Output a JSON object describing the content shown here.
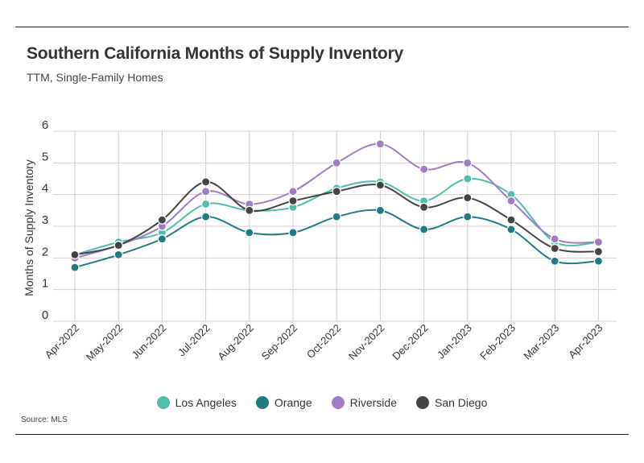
{
  "title": "Southern California Months of Supply Inventory",
  "subtitle": "TTM, Single-Family Homes",
  "source": "Source: MLS",
  "chart_data": {
    "type": "line",
    "title": "Southern California Months of Supply Inventory",
    "subtitle": "TTM, Single-Family Homes",
    "xlabel": "",
    "ylabel": "Months of Supply Inventory",
    "ylim": [
      0,
      6
    ],
    "yticks": [
      0,
      1,
      2,
      3,
      4,
      5,
      6
    ],
    "grid": true,
    "legend_position": "bottom",
    "categories": [
      "Apr-2022",
      "May-2022",
      "Jun-2022",
      "Jul-2022",
      "Aug-2022",
      "Sep-2022",
      "Oct-2022",
      "Nov-2022",
      "Dec-2022",
      "Jan-2023",
      "Feb-2023",
      "Mar-2023",
      "Apr-2023"
    ],
    "series": [
      {
        "name": "Los Angeles",
        "color": "#4dbfac",
        "values": [
          2.1,
          2.5,
          2.8,
          3.7,
          3.5,
          3.6,
          4.2,
          4.4,
          3.8,
          4.5,
          4.0,
          2.5,
          2.5
        ]
      },
      {
        "name": "Orange",
        "color": "#227a85",
        "values": [
          1.7,
          2.1,
          2.6,
          3.3,
          2.8,
          2.8,
          3.3,
          3.5,
          2.9,
          3.3,
          2.9,
          1.9,
          1.9
        ]
      },
      {
        "name": "Riverside",
        "color": "#a07cc4",
        "values": [
          2.0,
          2.4,
          3.0,
          4.1,
          3.7,
          4.1,
          5.0,
          5.6,
          4.8,
          5.0,
          3.8,
          2.6,
          2.5
        ]
      },
      {
        "name": "San Diego",
        "color": "#444444",
        "values": [
          2.1,
          2.4,
          3.2,
          4.4,
          3.5,
          3.8,
          4.1,
          4.3,
          3.6,
          3.9,
          3.2,
          2.3,
          2.2
        ]
      }
    ]
  }
}
